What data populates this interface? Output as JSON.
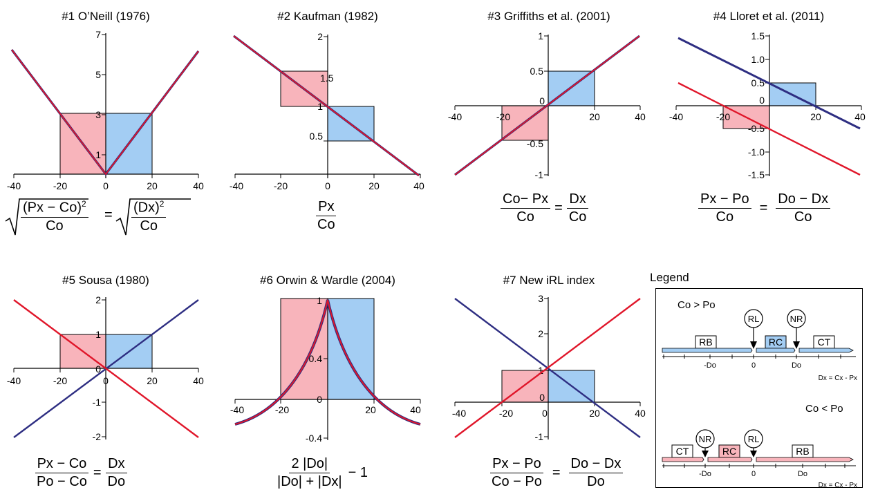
{
  "panels": [
    {
      "title": "#1  O’Neill (1976)",
      "xticks": [
        "-40",
        "-20",
        "0",
        "20",
        "40"
      ],
      "yticks": [
        "7",
        "5",
        "3",
        "1"
      ],
      "formula": {
        "lhs_num": "(Px − Co)",
        "lhs_sup": "2",
        "lhs_den": "Co",
        "eq": "=",
        "rhs_num": "(Dx)",
        "rhs_sup": "2",
        "rhs_den": "Co"
      }
    },
    {
      "title": "#2  Kaufman (1982)",
      "xticks": [
        "-40",
        "-20",
        "0",
        "20",
        "40"
      ],
      "yticks": [
        "2",
        "1.5",
        "1",
        "0.5"
      ],
      "formula": {
        "num": "Px",
        "den": "Co"
      }
    },
    {
      "title": "#3  Griffiths et al. (2001)",
      "xticks": [
        "-40",
        "-20",
        "0",
        "20",
        "40"
      ],
      "yticks": [
        "1",
        "0.5",
        "0",
        "-0.5",
        "-1"
      ],
      "formula": {
        "lhs_num": "Co− Px",
        "lhs_den": "Co",
        "eq": "=",
        "rhs_num": "Dx",
        "rhs_den": "Co"
      }
    },
    {
      "title": "#4  Lloret et al. (2011)",
      "xticks": [
        "-40",
        "-20",
        "20",
        "40"
      ],
      "yticks": [
        "1.5",
        "1.0",
        "0.5",
        "0",
        "-0.5",
        "-1.0",
        "-1.5"
      ],
      "formula": {
        "lhs_num": "Px  − Po",
        "lhs_den": "Co",
        "eq": "=",
        "rhs_num": "Do  − Dx",
        "rhs_den": "Co"
      }
    },
    {
      "title": "#5  Sousa (1980)",
      "xticks": [
        "-40",
        "-20",
        "0",
        "20",
        "40"
      ],
      "yticks": [
        "2",
        "1",
        "0",
        "-1",
        "-2"
      ],
      "formula": {
        "lhs_num": "Px  − Co",
        "lhs_den": "Po  − Co",
        "eq": "=",
        "rhs_num": "Dx",
        "rhs_den": "Do"
      }
    },
    {
      "title": "#6  Orwin & Wardle (2004)",
      "xticks": [
        "-40",
        "-20",
        "20",
        "40"
      ],
      "yticks": [
        "1",
        "0.4",
        "0",
        "-0.4"
      ],
      "formula": {
        "num": "2 |Do|",
        "den": "|Do| + |Dx|",
        "tail": "− 1"
      }
    },
    {
      "title": "#7  New iRL index",
      "xticks": [
        "-40",
        "-20",
        "0",
        "20",
        "40"
      ],
      "yticks": [
        "3",
        "2",
        "1",
        "0",
        "-1"
      ],
      "formula": {
        "lhs_num": "Px  − Po",
        "lhs_den": "Co  − Po",
        "eq": "=",
        "rhs_num": "Do  − Dx",
        "rhs_den": "Do"
      }
    }
  ],
  "legend": {
    "title": "Legend",
    "top": {
      "condition": "Co > Po",
      "labels": {
        "RB": "RB",
        "RC": "RC",
        "CT": "CT",
        "RL": "RL",
        "NR": "NR"
      },
      "ticks": [
        "-Do",
        "0",
        "Do"
      ],
      "note": "Dx = Cx - Px"
    },
    "bottom": {
      "condition": "Co < Po",
      "labels": {
        "CT": "CT",
        "RC": "RC",
        "RB": "RB",
        "NR": "NR",
        "RL": "RL"
      },
      "ticks": [
        "-Do",
        "0",
        "Do"
      ],
      "note": "Dx = Cx - Px"
    }
  },
  "colors": {
    "blue_line": "#2e2e82",
    "red_line": "#e0162a",
    "pink_fill": "#f8b4bb",
    "blue_fill": "#a3cdf3",
    "axis": "#000000"
  }
}
